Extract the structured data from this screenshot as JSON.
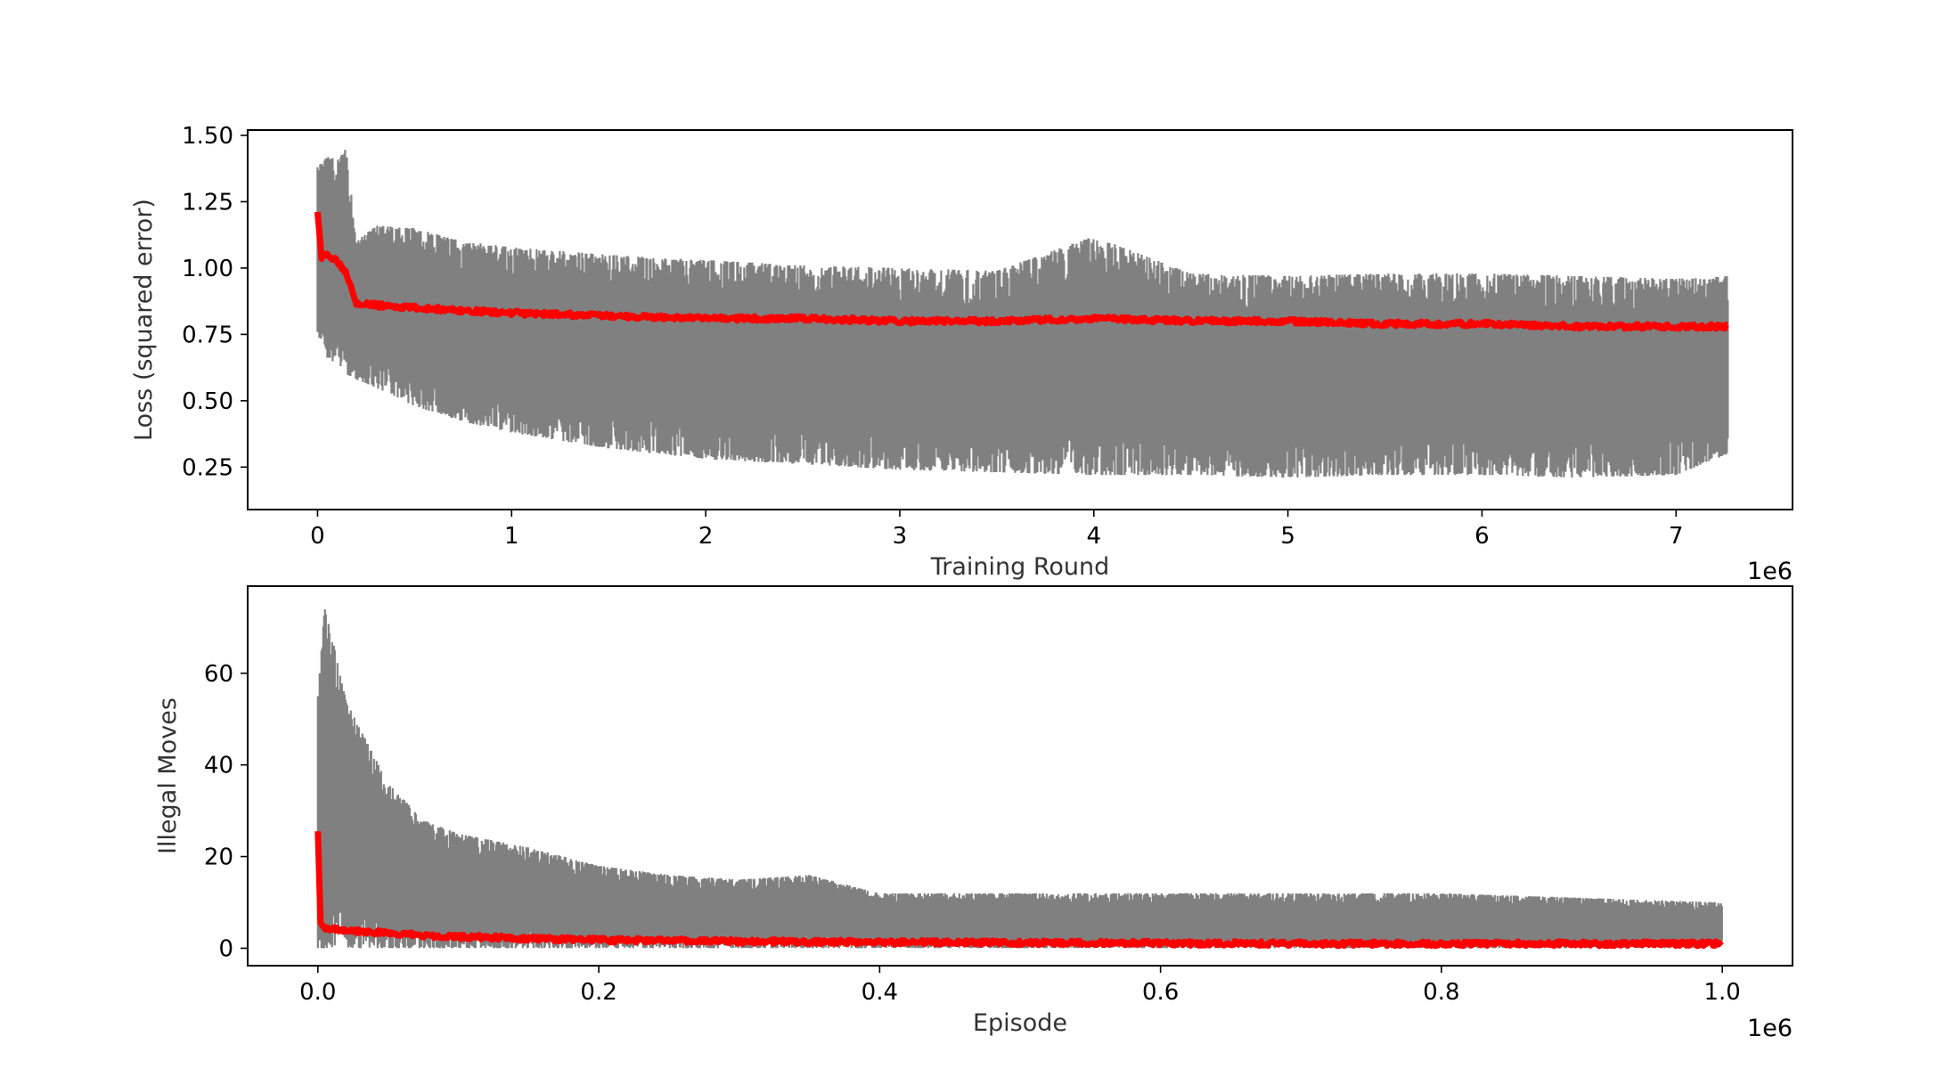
{
  "chart_data": [
    {
      "type": "line",
      "xlabel": "Training Round",
      "ylabel": "Loss (squared error)",
      "x_offset_label": "1e6",
      "xlim": [
        -0.36,
        7.6
      ],
      "ylim": [
        0.09,
        1.52
      ],
      "x_ticks": [
        0,
        1,
        2,
        3,
        4,
        5,
        6,
        7
      ],
      "y_ticks": [
        0.25,
        0.5,
        0.75,
        1.0,
        1.25,
        1.5
      ],
      "x_tick_labels": [
        "0",
        "1",
        "2",
        "3",
        "4",
        "5",
        "6",
        "7"
      ],
      "y_tick_labels": [
        "0.25",
        "0.50",
        "0.75",
        "1.00",
        "1.25",
        "1.50"
      ],
      "grid": false,
      "series": [
        {
          "color": "#808080",
          "style": "raw-band",
          "x": [
            0,
            0.05,
            0.1,
            0.15,
            0.2,
            0.3,
            0.5,
            0.75,
            1.0,
            1.5,
            2.0,
            2.5,
            3.0,
            3.5,
            4.0,
            4.5,
            5.0,
            5.5,
            6.0,
            6.5,
            7.0,
            7.27
          ],
          "upper": [
            1.38,
            1.42,
            1.43,
            1.45,
            1.1,
            1.16,
            1.15,
            1.1,
            1.08,
            1.05,
            1.03,
            1.01,
            1.0,
            0.99,
            1.12,
            0.98,
            0.97,
            0.98,
            0.98,
            0.97,
            0.96,
            0.97
          ],
          "lower": [
            0.75,
            0.66,
            0.64,
            0.6,
            0.58,
            0.55,
            0.48,
            0.42,
            0.38,
            0.32,
            0.28,
            0.26,
            0.24,
            0.23,
            0.22,
            0.22,
            0.21,
            0.22,
            0.22,
            0.21,
            0.22,
            0.3
          ]
        },
        {
          "color": "#ff0000",
          "style": "smoothed",
          "x": [
            0,
            0.02,
            0.05,
            0.1,
            0.15,
            0.2,
            0.3,
            0.5,
            1.0,
            1.5,
            2.0,
            2.5,
            3.0,
            3.5,
            4.0,
            4.5,
            5.0,
            5.5,
            6.0,
            6.5,
            7.0,
            7.27
          ],
          "values": [
            1.22,
            1.04,
            1.05,
            1.03,
            0.98,
            0.87,
            0.86,
            0.85,
            0.83,
            0.82,
            0.81,
            0.81,
            0.8,
            0.8,
            0.81,
            0.8,
            0.8,
            0.79,
            0.79,
            0.78,
            0.78,
            0.78
          ]
        }
      ]
    },
    {
      "type": "line",
      "xlabel": "Episode",
      "ylabel": "Illegal Moves",
      "x_offset_label": "1e6",
      "xlim": [
        -0.05,
        1.05
      ],
      "ylim": [
        -3.8,
        79
      ],
      "x_ticks": [
        0.0,
        0.2,
        0.4,
        0.6,
        0.8,
        1.0
      ],
      "y_ticks": [
        0,
        20,
        40,
        60
      ],
      "x_tick_labels": [
        "0.0",
        "0.2",
        "0.4",
        "0.6",
        "0.8",
        "1.0"
      ],
      "y_tick_labels": [
        "0",
        "20",
        "40",
        "60"
      ],
      "grid": false,
      "series": [
        {
          "color": "#808080",
          "style": "raw-band",
          "x": [
            0,
            0.005,
            0.01,
            0.02,
            0.03,
            0.05,
            0.075,
            0.1,
            0.15,
            0.2,
            0.25,
            0.3,
            0.35,
            0.4,
            0.5,
            0.6,
            0.7,
            0.8,
            0.9,
            1.0
          ],
          "upper": [
            55,
            75,
            68,
            54,
            48,
            36,
            28,
            25,
            22,
            18,
            16,
            15,
            16,
            12,
            12,
            12,
            12,
            12,
            11,
            10
          ],
          "lower": [
            0,
            0,
            0,
            0,
            0,
            0,
            0,
            0,
            0,
            0,
            0,
            0,
            0,
            0,
            0,
            0,
            0,
            0,
            0,
            0
          ]
        },
        {
          "color": "#ff0000",
          "style": "smoothed",
          "x": [
            0,
            0.002,
            0.005,
            0.02,
            0.05,
            0.1,
            0.2,
            0.3,
            0.4,
            0.5,
            0.6,
            0.7,
            0.8,
            0.9,
            1.0
          ],
          "values": [
            26,
            5,
            4.5,
            4,
            3.2,
            2.5,
            1.8,
            1.5,
            1.3,
            1.2,
            1.1,
            1.0,
            1.0,
            1.0,
            1.0
          ]
        }
      ]
    }
  ]
}
